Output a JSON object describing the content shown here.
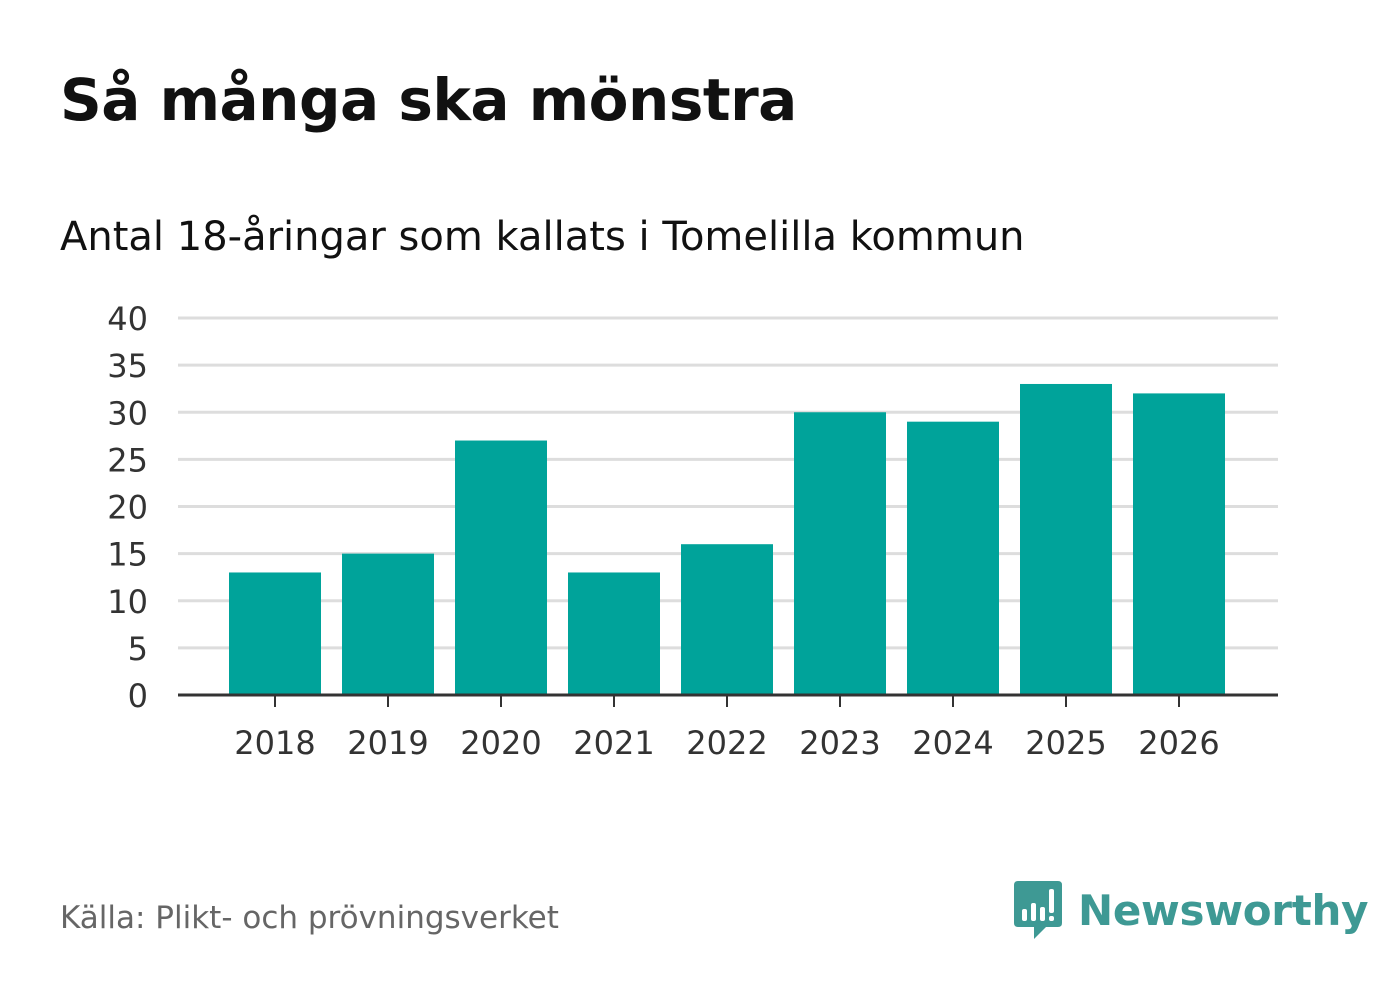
{
  "header": {
    "title": "Så många ska mönstra",
    "subtitle": "Antal 18-åringar som kallats i Tomelilla kommun"
  },
  "footer": {
    "source": "Källa: Plikt- och prövningsverket",
    "brand": "Newsworthy",
    "brand_icon": "speech-bubble-bar-chart-icon"
  },
  "colors": {
    "bar": "#00a39a",
    "grid": "#dddddd",
    "axis": "#333333",
    "brand": "#3e9994"
  },
  "chart_data": {
    "type": "bar",
    "title": "Så många ska mönstra",
    "subtitle": "Antal 18-åringar som kallats i Tomelilla kommun",
    "categories": [
      "2018",
      "2019",
      "2020",
      "2021",
      "2022",
      "2023",
      "2024",
      "2025",
      "2026"
    ],
    "values": [
      13,
      15,
      27,
      13,
      16,
      30,
      29,
      33,
      32
    ],
    "xlabel": "",
    "ylabel": "",
    "ylim": [
      0,
      40
    ],
    "yticks": [
      0,
      5,
      10,
      15,
      20,
      25,
      30,
      35,
      40
    ],
    "grid": true
  }
}
